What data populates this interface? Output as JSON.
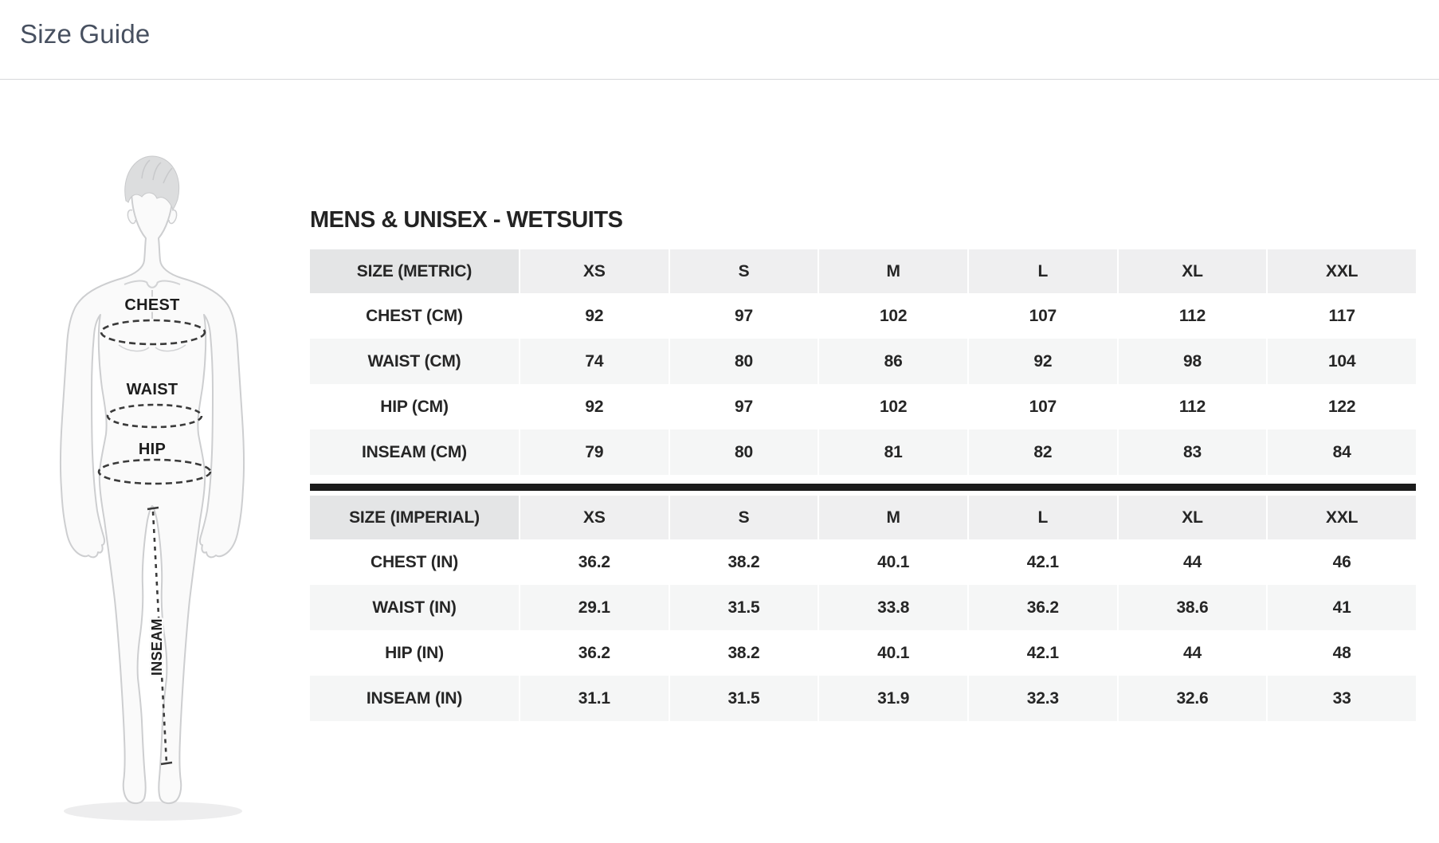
{
  "page": {
    "title": "Size Guide"
  },
  "figure": {
    "labels": {
      "chest": "CHEST",
      "waist": "WAIST",
      "hip": "HIP",
      "inseam": "INSEAM"
    }
  },
  "size_chart": {
    "title": "MENS & UNISEX - WETSUITS",
    "sizes": [
      "XS",
      "S",
      "M",
      "L",
      "XL",
      "XXL"
    ],
    "metric": {
      "header": "SIZE (METRIC)",
      "rows": [
        {
          "label": "CHEST (CM)",
          "values": [
            "92",
            "97",
            "102",
            "107",
            "112",
            "117"
          ]
        },
        {
          "label": "WAIST (CM)",
          "values": [
            "74",
            "80",
            "86",
            "92",
            "98",
            "104"
          ]
        },
        {
          "label": "HIP (CM)",
          "values": [
            "92",
            "97",
            "102",
            "107",
            "112",
            "122"
          ]
        },
        {
          "label": "INSEAM (CM)",
          "values": [
            "79",
            "80",
            "81",
            "82",
            "83",
            "84"
          ]
        }
      ]
    },
    "imperial": {
      "header": "SIZE (IMPERIAL)",
      "rows": [
        {
          "label": "CHEST (IN)",
          "values": [
            "36.2",
            "38.2",
            "40.1",
            "42.1",
            "44",
            "46"
          ]
        },
        {
          "label": "WAIST (IN)",
          "values": [
            "29.1",
            "31.5",
            "33.8",
            "36.2",
            "38.6",
            "41"
          ]
        },
        {
          "label": "HIP (IN)",
          "values": [
            "36.2",
            "38.2",
            "40.1",
            "42.1",
            "44",
            "48"
          ]
        },
        {
          "label": "INSEAM (IN)",
          "values": [
            "31.1",
            "31.5",
            "31.9",
            "32.3",
            "32.6",
            "33"
          ]
        }
      ]
    }
  },
  "colors": {
    "accent_black_bar": "#1b1b1b",
    "table_header_label_bg": "#e4e5e6",
    "table_header_bg": "#efeff0",
    "table_alt_row_bg": "#f5f6f6",
    "table_text": "#262626",
    "chart_title_color": "#232323",
    "page_title_color": "#475060",
    "top_divider": "#d7d8da",
    "figure_label_color": "#1d1d1d",
    "figure_outline": "#cdced0",
    "figure_fill": "#fafafa",
    "figure_hair_fill": "#dcddde",
    "figure_shadow": "#ededee",
    "measure_line": "#3a3a3a"
  }
}
